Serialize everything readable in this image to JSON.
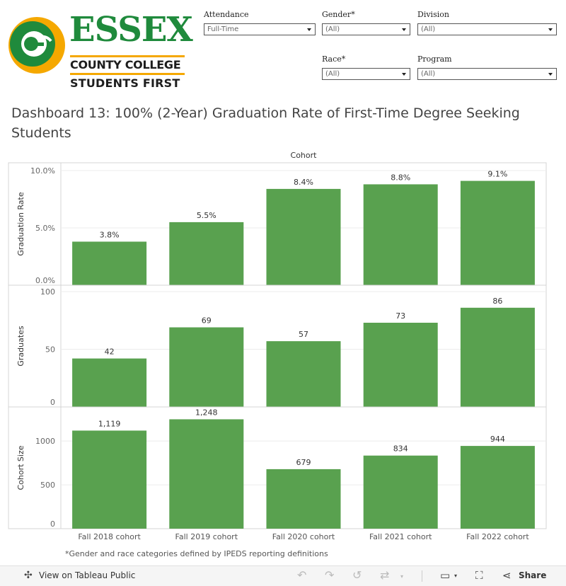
{
  "logo": {
    "line1": "ESSEX",
    "line2": "COUNTY COLLEGE",
    "line3": "STUDENTS FIRST"
  },
  "filters": [
    {
      "label": "Attendance",
      "value": "Full-Time"
    },
    {
      "label": "Gender*",
      "value": "(All)"
    },
    {
      "label": "Division",
      "value": "(All)"
    },
    {
      "label": "Race*",
      "value": "(All)"
    },
    {
      "label": "Program",
      "value": "(All)"
    }
  ],
  "title": "Dashboard 13: 100% (2-Year) Graduation Rate of First-Time Degree Seeking Students",
  "footnote": "*Gender and race categories defined by IPEDS reporting definitions",
  "toolbar": {
    "view_label": "View on Tableau Public",
    "share_label": "Share"
  },
  "colors": {
    "bar": "#59a14f",
    "grid": "#ececec",
    "border": "#d4d4d4",
    "accent_orange": "#f5a800",
    "brand_green": "#1f8a3c"
  },
  "chart_data": {
    "type": "bar",
    "column_header": "Cohort",
    "categories": [
      "Fall 2018 cohort",
      "Fall 2019 cohort",
      "Fall 2020 cohort",
      "Fall 2021 cohort",
      "Fall 2022 cohort"
    ],
    "panels": [
      {
        "ylabel": "Graduation Rate",
        "values": [
          0.038,
          0.055,
          0.084,
          0.088,
          0.091
        ],
        "labels": [
          "3.8%",
          "5.5%",
          "8.4%",
          "8.8%",
          "9.1%"
        ],
        "ylim": [
          0,
          0.1
        ],
        "ticks": [
          0,
          0.05,
          0.1
        ],
        "tick_labels": [
          "0.0%",
          "5.0%",
          "10.0%"
        ]
      },
      {
        "ylabel": "Graduates",
        "values": [
          42,
          69,
          57,
          73,
          86
        ],
        "labels": [
          "42",
          "69",
          "57",
          "73",
          "86"
        ],
        "ylim": [
          0,
          100
        ],
        "ticks": [
          0,
          50,
          100
        ],
        "tick_labels": [
          "0",
          "50",
          "100"
        ]
      },
      {
        "ylabel": "Cohort Size",
        "values": [
          1119,
          1248,
          679,
          834,
          944
        ],
        "labels": [
          "1,119",
          "1,248",
          "679",
          "834",
          "944"
        ],
        "ylim": [
          0,
          1300
        ],
        "ticks": [
          0,
          500,
          1000
        ],
        "tick_labels": [
          "0",
          "500",
          "1000"
        ]
      }
    ],
    "grid": true,
    "legend": "none"
  }
}
